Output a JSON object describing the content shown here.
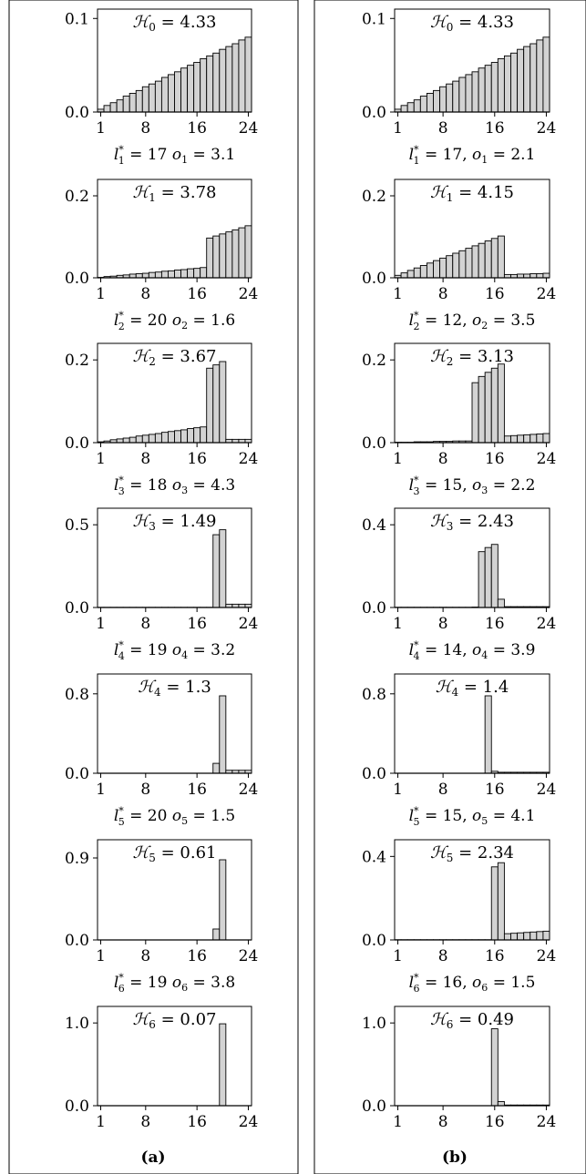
{
  "columns": [
    {
      "label": "(a)"
    },
    {
      "label": "(b)"
    }
  ],
  "chart_data": [
    {
      "type": "bar",
      "column": "(a)",
      "title": "ℋ0 = 4.33",
      "caption": "l*1 = 17 o1 = 3.1",
      "xticks": [
        "1",
        "8",
        "16",
        "24"
      ],
      "yticks": [
        "0.0",
        "0.1"
      ],
      "ylim": [
        0,
        0.11
      ],
      "x": [
        1,
        2,
        3,
        4,
        5,
        6,
        7,
        8,
        9,
        10,
        11,
        12,
        13,
        14,
        15,
        16,
        17,
        18,
        19,
        20,
        21,
        22,
        23,
        24
      ],
      "values": [
        0.003,
        0.007,
        0.01,
        0.013,
        0.017,
        0.02,
        0.023,
        0.027,
        0.03,
        0.033,
        0.037,
        0.04,
        0.043,
        0.047,
        0.05,
        0.053,
        0.057,
        0.06,
        0.063,
        0.067,
        0.07,
        0.073,
        0.077,
        0.08
      ]
    },
    {
      "type": "bar",
      "column": "(a)",
      "title": "ℋ1 = 3.78",
      "caption": "l*2 = 20 o2 = 1.6",
      "xticks": [
        "1",
        "8",
        "16",
        "24"
      ],
      "yticks": [
        "0.0",
        "0.2"
      ],
      "ylim": [
        0,
        0.24
      ],
      "x": [
        1,
        2,
        3,
        4,
        5,
        6,
        7,
        8,
        9,
        10,
        11,
        12,
        13,
        14,
        15,
        16,
        17,
        18,
        19,
        20,
        21,
        22,
        23,
        24
      ],
      "values": [
        0.001,
        0.003,
        0.004,
        0.006,
        0.007,
        0.009,
        0.01,
        0.011,
        0.013,
        0.014,
        0.016,
        0.017,
        0.019,
        0.02,
        0.022,
        0.023,
        0.025,
        0.097,
        0.102,
        0.107,
        0.112,
        0.117,
        0.122,
        0.127
      ]
    },
    {
      "type": "bar",
      "column": "(a)",
      "title": "ℋ2 = 3.67",
      "caption": "l*3 = 18 o3 = 4.3",
      "xticks": [
        "1",
        "8",
        "16",
        "24"
      ],
      "yticks": [
        "0.0",
        "0.2"
      ],
      "ylim": [
        0,
        0.24
      ],
      "x": [
        1,
        2,
        3,
        4,
        5,
        6,
        7,
        8,
        9,
        10,
        11,
        12,
        13,
        14,
        15,
        16,
        17,
        18,
        19,
        20,
        21,
        22,
        23,
        24
      ],
      "values": [
        0.002,
        0.004,
        0.007,
        0.009,
        0.011,
        0.013,
        0.016,
        0.018,
        0.02,
        0.022,
        0.025,
        0.027,
        0.029,
        0.031,
        0.034,
        0.036,
        0.038,
        0.18,
        0.188,
        0.196,
        0.008,
        0.008,
        0.008,
        0.008
      ]
    },
    {
      "type": "bar",
      "column": "(a)",
      "title": "ℋ3 = 1.49",
      "caption": "l*4 = 19 o4 = 3.2",
      "xticks": [
        "1",
        "8",
        "16",
        "24"
      ],
      "yticks": [
        "0.0",
        "0.5"
      ],
      "ylim": [
        0,
        0.6
      ],
      "x": [
        1,
        2,
        3,
        4,
        5,
        6,
        7,
        8,
        9,
        10,
        11,
        12,
        13,
        14,
        15,
        16,
        17,
        18,
        19,
        20,
        21,
        22,
        23,
        24
      ],
      "values": [
        0.001,
        0.001,
        0.001,
        0.001,
        0.001,
        0.001,
        0.001,
        0.001,
        0.001,
        0.001,
        0.001,
        0.001,
        0.001,
        0.001,
        0.001,
        0.001,
        0.001,
        0.001,
        0.44,
        0.47,
        0.02,
        0.02,
        0.02,
        0.02
      ]
    },
    {
      "type": "bar",
      "column": "(a)",
      "title": "ℋ4 = 1.3",
      "caption": "l*5 = 20 o5 = 1.5",
      "xticks": [
        "1",
        "8",
        "16",
        "24"
      ],
      "yticks": [
        "0.0",
        "0.8"
      ],
      "ylim": [
        0,
        1.0
      ],
      "x": [
        1,
        2,
        3,
        4,
        5,
        6,
        7,
        8,
        9,
        10,
        11,
        12,
        13,
        14,
        15,
        16,
        17,
        18,
        19,
        20,
        21,
        22,
        23,
        24
      ],
      "values": [
        0,
        0,
        0,
        0,
        0,
        0,
        0,
        0,
        0,
        0,
        0,
        0,
        0,
        0,
        0,
        0,
        0,
        0,
        0.1,
        0.78,
        0.03,
        0.03,
        0.03,
        0.03
      ]
    },
    {
      "type": "bar",
      "column": "(a)",
      "title": "ℋ5 = 0.61",
      "caption": "l*6 = 19 o6 = 3.8",
      "xticks": [
        "1",
        "8",
        "16",
        "24"
      ],
      "yticks": [
        "0.0",
        "0.9"
      ],
      "ylim": [
        0,
        1.1
      ],
      "x": [
        1,
        2,
        3,
        4,
        5,
        6,
        7,
        8,
        9,
        10,
        11,
        12,
        13,
        14,
        15,
        16,
        17,
        18,
        19,
        20,
        21,
        22,
        23,
        24
      ],
      "values": [
        0,
        0,
        0,
        0,
        0,
        0,
        0,
        0,
        0,
        0,
        0,
        0,
        0,
        0,
        0,
        0,
        0,
        0,
        0.12,
        0.88,
        0,
        0,
        0,
        0
      ]
    },
    {
      "type": "bar",
      "column": "(a)",
      "title": "ℋ6 = 0.07",
      "caption": "",
      "xticks": [
        "1",
        "8",
        "16",
        "24"
      ],
      "yticks": [
        "0.0",
        "1.0"
      ],
      "ylim": [
        0,
        1.2
      ],
      "x": [
        1,
        2,
        3,
        4,
        5,
        6,
        7,
        8,
        9,
        10,
        11,
        12,
        13,
        14,
        15,
        16,
        17,
        18,
        19,
        20,
        21,
        22,
        23,
        24
      ],
      "values": [
        0,
        0,
        0,
        0,
        0,
        0,
        0,
        0,
        0,
        0,
        0,
        0,
        0,
        0,
        0,
        0,
        0,
        0,
        0,
        0.99,
        0,
        0,
        0,
        0
      ]
    },
    {
      "type": "bar",
      "column": "(b)",
      "title": "ℋ0 = 4.33",
      "caption": "l*1 = 17, o1 = 2.1",
      "xticks": [
        "1",
        "8",
        "16",
        "24"
      ],
      "yticks": [
        "0.0",
        "0.1"
      ],
      "ylim": [
        0,
        0.11
      ],
      "x": [
        1,
        2,
        3,
        4,
        5,
        6,
        7,
        8,
        9,
        10,
        11,
        12,
        13,
        14,
        15,
        16,
        17,
        18,
        19,
        20,
        21,
        22,
        23,
        24
      ],
      "values": [
        0.003,
        0.007,
        0.01,
        0.013,
        0.017,
        0.02,
        0.023,
        0.027,
        0.03,
        0.033,
        0.037,
        0.04,
        0.043,
        0.047,
        0.05,
        0.053,
        0.057,
        0.06,
        0.063,
        0.067,
        0.07,
        0.073,
        0.077,
        0.08
      ]
    },
    {
      "type": "bar",
      "column": "(b)",
      "title": "ℋ1 = 4.15",
      "caption": "l*2 = 12, o2 = 3.5",
      "xticks": [
        "1",
        "8",
        "16",
        "24"
      ],
      "yticks": [
        "0.0",
        "0.2"
      ],
      "ylim": [
        0,
        0.24
      ],
      "x": [
        1,
        2,
        3,
        4,
        5,
        6,
        7,
        8,
        9,
        10,
        11,
        12,
        13,
        14,
        15,
        16,
        17,
        18,
        19,
        20,
        21,
        22,
        23,
        24
      ],
      "values": [
        0.006,
        0.012,
        0.018,
        0.024,
        0.03,
        0.036,
        0.042,
        0.048,
        0.054,
        0.06,
        0.066,
        0.072,
        0.078,
        0.084,
        0.09,
        0.096,
        0.102,
        0.008,
        0.008,
        0.009,
        0.009,
        0.01,
        0.01,
        0.011
      ]
    },
    {
      "type": "bar",
      "column": "(b)",
      "title": "ℋ2 = 3.13",
      "caption": "l*3 = 15, o3 = 2.2",
      "xticks": [
        "1",
        "8",
        "16",
        "24"
      ],
      "yticks": [
        "0.0",
        "0.2"
      ],
      "ylim": [
        0,
        0.24
      ],
      "x": [
        1,
        2,
        3,
        4,
        5,
        6,
        7,
        8,
        9,
        10,
        11,
        12,
        13,
        14,
        15,
        16,
        17,
        18,
        19,
        20,
        21,
        22,
        23,
        24
      ],
      "values": [
        0.001,
        0.001,
        0.001,
        0.002,
        0.002,
        0.002,
        0.003,
        0.003,
        0.003,
        0.004,
        0.004,
        0.004,
        0.145,
        0.16,
        0.17,
        0.18,
        0.19,
        0.016,
        0.017,
        0.018,
        0.019,
        0.02,
        0.021,
        0.022
      ]
    },
    {
      "type": "bar",
      "column": "(b)",
      "title": "ℋ3 = 2.43",
      "caption": "l*4 = 14, o4 = 3.9",
      "xticks": [
        "1",
        "8",
        "16",
        "24"
      ],
      "yticks": [
        "0.0",
        "0.4"
      ],
      "ylim": [
        0,
        0.48
      ],
      "x": [
        1,
        2,
        3,
        4,
        5,
        6,
        7,
        8,
        9,
        10,
        11,
        12,
        13,
        14,
        15,
        16,
        17,
        18,
        19,
        20,
        21,
        22,
        23,
        24
      ],
      "values": [
        0.001,
        0.001,
        0.001,
        0.001,
        0.001,
        0.001,
        0.001,
        0.001,
        0.001,
        0.001,
        0.001,
        0.001,
        0.002,
        0.27,
        0.29,
        0.305,
        0.04,
        0.004,
        0.004,
        0.004,
        0.004,
        0.004,
        0.004,
        0.004
      ]
    },
    {
      "type": "bar",
      "column": "(b)",
      "title": "ℋ4 = 1.4",
      "caption": "l*5 = 15, o5 = 4.1",
      "xticks": [
        "1",
        "8",
        "16",
        "24"
      ],
      "yticks": [
        "0.0",
        "0.8"
      ],
      "ylim": [
        0,
        1.0
      ],
      "x": [
        1,
        2,
        3,
        4,
        5,
        6,
        7,
        8,
        9,
        10,
        11,
        12,
        13,
        14,
        15,
        16,
        17,
        18,
        19,
        20,
        21,
        22,
        23,
        24
      ],
      "values": [
        0,
        0,
        0,
        0,
        0,
        0,
        0,
        0,
        0,
        0,
        0,
        0,
        0,
        0,
        0.78,
        0.02,
        0.01,
        0.01,
        0.01,
        0.01,
        0.01,
        0.01,
        0.01,
        0.01
      ]
    },
    {
      "type": "bar",
      "column": "(b)",
      "title": "ℋ5 = 2.34",
      "caption": "l*6 = 16, o6 = 1.5",
      "xticks": [
        "1",
        "8",
        "16",
        "24"
      ],
      "yticks": [
        "0.0",
        "0.4"
      ],
      "ylim": [
        0,
        0.48
      ],
      "x": [
        1,
        2,
        3,
        4,
        5,
        6,
        7,
        8,
        9,
        10,
        11,
        12,
        13,
        14,
        15,
        16,
        17,
        18,
        19,
        20,
        21,
        22,
        23,
        24
      ],
      "values": [
        0.001,
        0.001,
        0.001,
        0.001,
        0.001,
        0.001,
        0.001,
        0.001,
        0.001,
        0.001,
        0.001,
        0.001,
        0.001,
        0.001,
        0.001,
        0.35,
        0.37,
        0.03,
        0.032,
        0.034,
        0.036,
        0.038,
        0.04,
        0.042
      ]
    },
    {
      "type": "bar",
      "column": "(b)",
      "title": "ℋ6 = 0.49",
      "caption": "",
      "xticks": [
        "1",
        "8",
        "16",
        "24"
      ],
      "yticks": [
        "0.0",
        "1.0"
      ],
      "ylim": [
        0,
        1.2
      ],
      "x": [
        1,
        2,
        3,
        4,
        5,
        6,
        7,
        8,
        9,
        10,
        11,
        12,
        13,
        14,
        15,
        16,
        17,
        18,
        19,
        20,
        21,
        22,
        23,
        24
      ],
      "values": [
        0,
        0,
        0,
        0,
        0,
        0,
        0,
        0,
        0,
        0,
        0,
        0,
        0,
        0,
        0,
        0.93,
        0.05,
        0.008,
        0.008,
        0.008,
        0.008,
        0.008,
        0.008,
        0.008
      ]
    }
  ]
}
